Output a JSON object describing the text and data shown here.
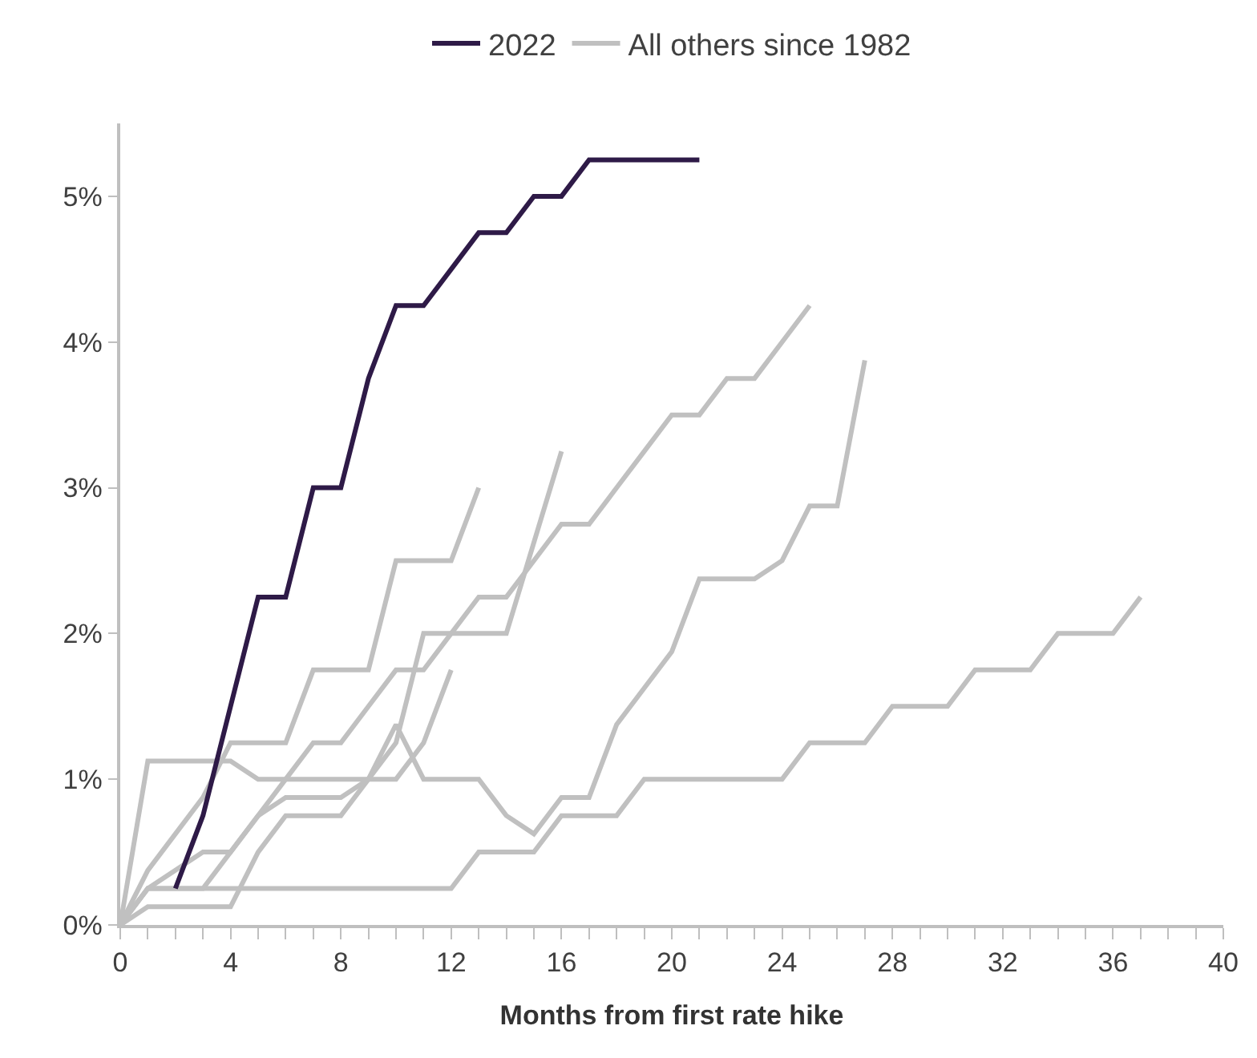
{
  "chart_data": {
    "type": "line",
    "xlabel": "Months from first rate hike",
    "xlim": [
      0,
      40
    ],
    "ylim": [
      0,
      5.5
    ],
    "xticks": [
      0,
      {
        "value": 1,
        "label": null
      },
      {
        "value": 2,
        "label": null
      },
      {
        "value": 3,
        "label": null
      },
      4,
      {
        "value": 5,
        "label": null
      },
      {
        "value": 6,
        "label": null
      },
      {
        "value": 7,
        "label": null
      },
      8,
      {
        "value": 9,
        "label": null
      },
      {
        "value": 10,
        "label": null
      },
      {
        "value": 11,
        "label": null
      },
      12,
      {
        "value": 13,
        "label": null
      },
      {
        "value": 14,
        "label": null
      },
      {
        "value": 15,
        "label": null
      },
      16,
      {
        "value": 17,
        "label": null
      },
      {
        "value": 18,
        "label": null
      },
      {
        "value": 19,
        "label": null
      },
      20,
      {
        "value": 21,
        "label": null
      },
      {
        "value": 22,
        "label": null
      },
      {
        "value": 23,
        "label": null
      },
      24,
      {
        "value": 25,
        "label": null
      },
      {
        "value": 26,
        "label": null
      },
      {
        "value": 27,
        "label": null
      },
      28,
      {
        "value": 29,
        "label": null
      },
      {
        "value": 30,
        "label": null
      },
      {
        "value": 31,
        "label": null
      },
      32,
      {
        "value": 33,
        "label": null
      },
      {
        "value": 34,
        "label": null
      },
      {
        "value": 35,
        "label": null
      },
      36,
      {
        "value": 37,
        "label": null
      },
      {
        "value": 38,
        "label": null
      },
      {
        "value": 39,
        "label": null
      },
      40
    ],
    "yticks": [
      {
        "value": 0,
        "label": "0%"
      },
      {
        "value": 1,
        "label": "1%"
      },
      {
        "value": 2,
        "label": "2%"
      },
      {
        "value": 3,
        "label": "3%"
      },
      {
        "value": 4,
        "label": "4%"
      },
      {
        "value": 5,
        "label": "5%"
      }
    ],
    "legend": "top",
    "marker": "none",
    "line_style": "solid",
    "series": [
      {
        "color": "#c0c0c0",
        "x": [
          0,
          1,
          2,
          3,
          4,
          5,
          6,
          7,
          8,
          9,
          10,
          11,
          12
        ],
        "values": [
          0,
          1.125,
          1.125,
          1.125,
          1.125,
          1.0,
          1.0,
          1.0,
          1.0,
          1.0,
          1.0,
          1.25,
          1.75
        ]
      },
      {
        "color": "#c0c0c0",
        "x": [
          0,
          1,
          2,
          3,
          4,
          5,
          6,
          7,
          8,
          9,
          10,
          11,
          12,
          13
        ],
        "values": [
          0,
          0.375,
          0.625,
          0.875,
          1.25,
          1.25,
          1.25,
          1.75,
          1.75,
          1.75,
          2.5,
          2.5,
          2.5,
          3.0
        ]
      },
      {
        "color": "#c0c0c0",
        "x": [
          0,
          1,
          2,
          3,
          4,
          5,
          6,
          7,
          8,
          9,
          10,
          11,
          12,
          13,
          14,
          15,
          16,
          17,
          18,
          19,
          20,
          21,
          22,
          23,
          24,
          25
        ],
        "values": [
          0,
          0.25,
          0.375,
          0.5,
          0.5,
          0.75,
          1.0,
          1.25,
          1.25,
          1.5,
          1.75,
          1.75,
          2.0,
          2.25,
          2.25,
          2.5,
          2.75,
          2.75,
          3.0,
          3.25,
          3.5,
          3.5,
          3.75,
          3.75,
          4.0,
          4.25
        ]
      },
      {
        "color": "#c0c0c0",
        "x": [
          0,
          1,
          2,
          3,
          4,
          5,
          6,
          7,
          8,
          9,
          10,
          11,
          12,
          13,
          14,
          15,
          16,
          17,
          18,
          19,
          20,
          21,
          22,
          23,
          24,
          25,
          26,
          27
        ],
        "values": [
          0,
          0.25,
          0.25,
          0.25,
          0.5,
          0.75,
          0.875,
          0.875,
          0.875,
          1.0,
          1.375,
          1.0,
          1.0,
          1.0,
          0.75,
          0.625,
          0.875,
          0.875,
          1.375,
          1.625,
          1.875,
          2.375,
          2.375,
          2.375,
          2.5,
          2.875,
          2.875,
          3.875
        ]
      },
      {
        "color": "#c0c0c0",
        "x": [
          0,
          1,
          2,
          3,
          4,
          5,
          6,
          7,
          8,
          9,
          10,
          11,
          12,
          13,
          14,
          16
        ],
        "values": [
          0,
          0.125,
          0.125,
          0.125,
          0.125,
          0.5,
          0.75,
          0.75,
          0.75,
          1.0,
          1.25,
          2.0,
          2.0,
          2.0,
          2.0,
          3.25
        ]
      },
      {
        "name": "All others since 1982",
        "color": "#c0c0c0",
        "x": [
          0,
          1,
          12,
          13,
          15,
          16,
          18,
          19,
          24,
          25,
          27,
          28,
          30,
          31,
          33,
          34,
          36,
          37
        ],
        "values": [
          0,
          0.25,
          0.25,
          0.5,
          0.5,
          0.75,
          0.75,
          1.0,
          1.0,
          1.25,
          1.25,
          1.5,
          1.5,
          1.75,
          1.75,
          2.0,
          2.0,
          2.25
        ]
      },
      {
        "name": "2022",
        "color": "#2e1a47",
        "x": [
          2,
          3,
          4,
          5,
          6,
          7,
          8,
          9,
          10,
          11,
          12,
          13,
          14,
          15,
          16,
          17,
          21
        ],
        "values": [
          0.25,
          0.75,
          1.5,
          2.25,
          2.25,
          3.0,
          3.0,
          3.75,
          4.25,
          4.25,
          4.5,
          4.75,
          4.75,
          5.0,
          5.0,
          5.25,
          5.25
        ]
      }
    ]
  }
}
